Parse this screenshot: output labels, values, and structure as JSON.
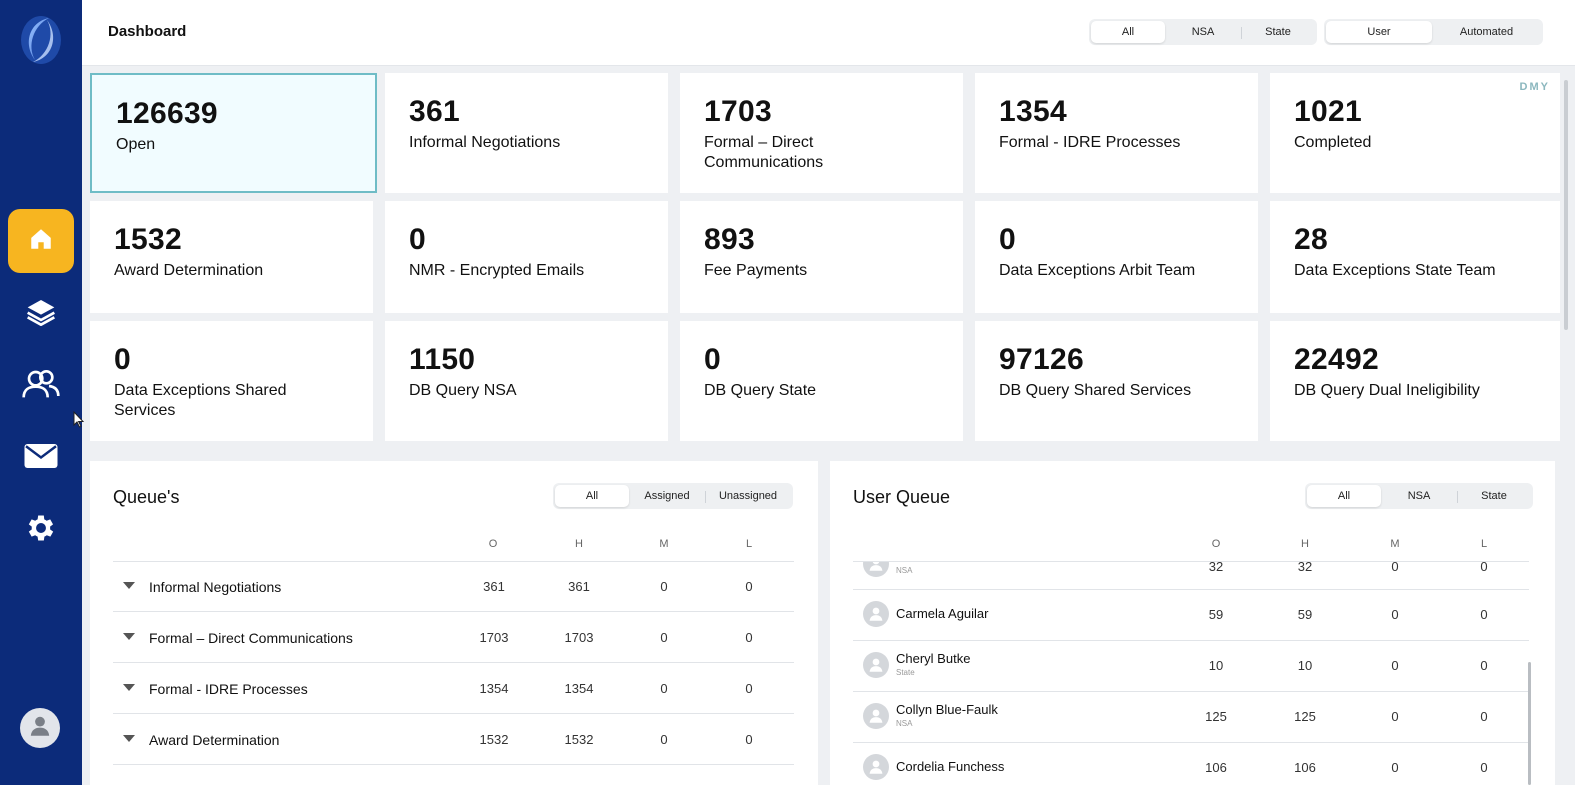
{
  "header": {
    "title": "Dashboard",
    "scope_filter": [
      "All",
      "NSA",
      "State"
    ],
    "scope_selected": "All",
    "type_filter": [
      "User",
      "Automated"
    ],
    "type_selected": "User"
  },
  "sidebar": {
    "items": [
      {
        "name": "home",
        "icon": "home-icon",
        "active": true
      },
      {
        "name": "layers",
        "icon": "layers-icon",
        "active": false
      },
      {
        "name": "users",
        "icon": "users-icon",
        "active": false
      },
      {
        "name": "mail",
        "icon": "mail-icon",
        "active": false
      },
      {
        "name": "settings",
        "icon": "gear-icon",
        "active": false
      }
    ],
    "accent_color": "#f7b520",
    "background_color": "#0c2b7a"
  },
  "period_toggle": "DMY",
  "stats": [
    {
      "value": "126639",
      "label": "Open",
      "selected": true
    },
    {
      "value": "361",
      "label": "Informal Negotiations"
    },
    {
      "value": "1703",
      "label": "Formal – Direct Communications"
    },
    {
      "value": "1354",
      "label": "Formal - IDRE Processes"
    },
    {
      "value": "1021",
      "label": "Completed"
    },
    {
      "value": "1532",
      "label": "Award Determination"
    },
    {
      "value": "0",
      "label": "NMR - Encrypted Emails"
    },
    {
      "value": "893",
      "label": "Fee Payments"
    },
    {
      "value": "0",
      "label": "Data Exceptions Arbit Team"
    },
    {
      "value": "28",
      "label": "Data Exceptions State Team"
    },
    {
      "value": "0",
      "label": "Data Exceptions Shared Services"
    },
    {
      "value": "1150",
      "label": "DB Query NSA"
    },
    {
      "value": "0",
      "label": "DB Query State"
    },
    {
      "value": "97126",
      "label": "DB Query Shared Services"
    },
    {
      "value": "22492",
      "label": "DB Query Dual Ineligibility"
    }
  ],
  "queues": {
    "title": "Queue's",
    "filter": [
      "All",
      "Assigned",
      "Unassigned"
    ],
    "filter_selected": "All",
    "columns": [
      "O",
      "H",
      "M",
      "L"
    ],
    "rows": [
      {
        "name": "Informal Negotiations",
        "o": "361",
        "h": "361",
        "m": "0",
        "l": "0"
      },
      {
        "name": "Formal – Direct Communications",
        "o": "1703",
        "h": "1703",
        "m": "0",
        "l": "0"
      },
      {
        "name": "Formal - IDRE Processes",
        "o": "1354",
        "h": "1354",
        "m": "0",
        "l": "0"
      },
      {
        "name": "Award Determination",
        "o": "1532",
        "h": "1532",
        "m": "0",
        "l": "0"
      }
    ]
  },
  "user_queue": {
    "title": "User Queue",
    "filter": [
      "All",
      "NSA",
      "State"
    ],
    "filter_selected": "All",
    "columns": [
      "O",
      "H",
      "M",
      "L"
    ],
    "rows": [
      {
        "name": "",
        "team": "NSA",
        "o": "32",
        "h": "32",
        "m": "0",
        "l": "0"
      },
      {
        "name": "Carmela Aguilar",
        "team": "",
        "o": "59",
        "h": "59",
        "m": "0",
        "l": "0"
      },
      {
        "name": "Cheryl Butke",
        "team": "State",
        "o": "10",
        "h": "10",
        "m": "0",
        "l": "0"
      },
      {
        "name": "Collyn Blue-Faulk",
        "team": "NSA",
        "o": "125",
        "h": "125",
        "m": "0",
        "l": "0"
      },
      {
        "name": "Cordelia Funchess",
        "team": "",
        "o": "106",
        "h": "106",
        "m": "0",
        "l": "0"
      }
    ]
  }
}
